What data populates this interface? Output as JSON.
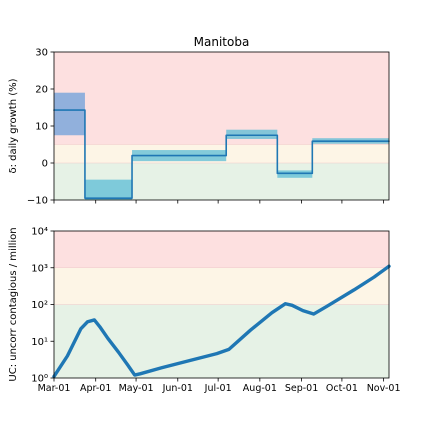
{
  "colors": {
    "line": "#1f77b4",
    "band_top": "#4a90d9",
    "band_other": "#5bbcd6",
    "zone_red": "#fde0e0",
    "zone_yellow": "#fdf5e6",
    "zone_green": "#e6f2e6"
  },
  "chart_data": [
    {
      "type": "line",
      "title": "Manitoba",
      "xlabel": "",
      "ylabel": "δ: daily growth (%)",
      "xlim": [
        "2020-03-01",
        "2020-11-05"
      ],
      "ylim": [
        -10,
        30
      ],
      "yticks": [
        -10,
        0,
        10,
        20,
        30
      ],
      "ytick_labels": [
        "−10",
        "0",
        "10",
        "20",
        "30"
      ],
      "grid": false,
      "zones": [
        {
          "from": -10,
          "to": 0,
          "color": "green"
        },
        {
          "from": 0,
          "to": 5,
          "color": "yellow"
        },
        {
          "from": 5,
          "to": 30,
          "color": "red"
        }
      ],
      "series": [
        {
          "x": [
            "2020-03-01",
            "2020-03-24",
            "2020-03-24",
            "2020-04-28",
            "2020-04-28",
            "2020-07-07",
            "2020-07-07",
            "2020-08-14",
            "2020-08-14",
            "2020-09-09",
            "2020-09-09",
            "2020-11-05"
          ],
          "y": [
            14.3,
            14.3,
            -9.5,
            -9.5,
            2.0,
            2.0,
            7.5,
            7.5,
            -2.8,
            -2.8,
            5.9,
            5.9
          ]
        }
      ],
      "bands": [
        {
          "x0": "2020-03-01",
          "x1": "2020-03-24",
          "low": 7.5,
          "high": 19.0
        },
        {
          "x0": "2020-03-24",
          "x1": "2020-04-28",
          "low": -10.0,
          "high": -4.5
        },
        {
          "x0": "2020-04-28",
          "x1": "2020-07-07",
          "low": 0.5,
          "high": 3.5
        },
        {
          "x0": "2020-07-07",
          "x1": "2020-08-14",
          "low": 6.5,
          "high": 9.0
        },
        {
          "x0": "2020-08-14",
          "x1": "2020-09-09",
          "low": -4.0,
          "high": -2.0
        },
        {
          "x0": "2020-09-09",
          "x1": "2020-11-05",
          "low": 5.2,
          "high": 6.7
        }
      ]
    },
    {
      "type": "line",
      "title": "",
      "xlabel": "",
      "ylabel": "UC: uncorr contagious / million",
      "yscale": "log",
      "xlim": [
        "2020-03-01",
        "2020-11-05"
      ],
      "ylim": [
        1,
        10000
      ],
      "yticks": [
        1,
        10,
        100,
        1000,
        10000
      ],
      "ytick_labels": [
        "10⁰",
        "10¹",
        "10²",
        "10³",
        "10⁴"
      ],
      "xticks": [
        "2020-03-01",
        "2020-04-01",
        "2020-05-01",
        "2020-06-01",
        "2020-07-01",
        "2020-08-01",
        "2020-09-01",
        "2020-10-01",
        "2020-11-01"
      ],
      "xtick_labels": [
        "Mar-01",
        "Apr-01",
        "May-01",
        "Jun-01",
        "Jul-01",
        "Aug-01",
        "Sep-01",
        "Oct-01",
        "Nov-01"
      ],
      "grid": false,
      "zones": [
        {
          "from": 1,
          "to": 100,
          "color": "green"
        },
        {
          "from": 100,
          "to": 1000,
          "color": "yellow"
        },
        {
          "from": 1000,
          "to": 10000,
          "color": "red"
        }
      ],
      "series": [
        {
          "x": [
            "2020-03-01",
            "2020-03-11",
            "2020-03-21",
            "2020-03-26",
            "2020-03-31",
            "2020-04-04",
            "2020-04-10",
            "2020-04-18",
            "2020-04-25",
            "2020-04-30",
            "2020-05-04",
            "2020-05-20",
            "2020-06-10",
            "2020-06-30",
            "2020-07-09",
            "2020-07-25",
            "2020-08-10",
            "2020-08-20",
            "2020-08-25",
            "2020-09-02",
            "2020-09-10",
            "2020-09-20",
            "2020-10-10",
            "2020-10-25",
            "2020-11-05"
          ],
          "y": [
            1.1,
            4,
            22,
            34,
            38,
            25,
            12,
            5,
            2.2,
            1.2,
            1.3,
            1.9,
            3.0,
            4.6,
            6,
            20,
            60,
            105,
            95,
            68,
            55,
            90,
            250,
            560,
            1100
          ]
        }
      ]
    }
  ]
}
